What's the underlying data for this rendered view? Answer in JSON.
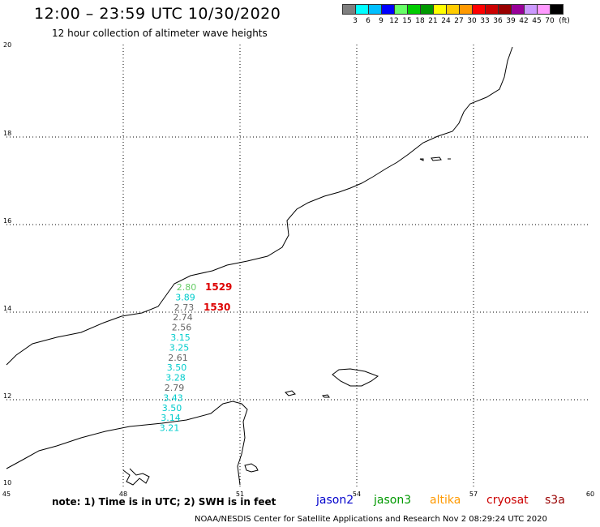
{
  "header": {
    "title": "12:00 – 23:59 UTC 10/30/2020",
    "subtitle": "12 hour collection of altimeter wave heights"
  },
  "scale": {
    "colors": [
      "#7f7f7f",
      "#00ffff",
      "#00bfff",
      "#0000ff",
      "#66ff66",
      "#00cc00",
      "#009900",
      "#ffff00",
      "#ffcc00",
      "#ff9900",
      "#ff0000",
      "#cc0000",
      "#990000",
      "#990099",
      "#cc99ff",
      "#ff99ff",
      "#000000"
    ],
    "labels": [
      "3",
      "6",
      "9",
      "12",
      "15",
      "18",
      "21",
      "24",
      "27",
      "30",
      "33",
      "36",
      "39",
      "42",
      "45",
      "70"
    ],
    "unit": "(ft)"
  },
  "axes": {
    "lon_ticks": [
      "45",
      "48",
      "51",
      "54",
      "57",
      "60"
    ],
    "lat_ticks": [
      "20",
      "18",
      "16",
      "14",
      "12",
      "10"
    ]
  },
  "observations": [
    {
      "value": "2.80",
      "color": "#66cc66"
    },
    {
      "value": "3.89",
      "color": "#00cccc"
    },
    {
      "value": "2.73",
      "color": "#666666"
    },
    {
      "value": "2.74",
      "color": "#666666"
    },
    {
      "value": "2.56",
      "color": "#666666"
    },
    {
      "value": "3.15",
      "color": "#00cccc"
    },
    {
      "value": "3.25",
      "color": "#00cccc"
    },
    {
      "value": "2.61",
      "color": "#666666"
    },
    {
      "value": "3.50",
      "color": "#00cccc"
    },
    {
      "value": "3.28",
      "color": "#00cccc"
    },
    {
      "value": "2.79",
      "color": "#666666"
    },
    {
      "value": "3.43",
      "color": "#00cccc"
    },
    {
      "value": "3.50",
      "color": "#00cccc"
    },
    {
      "value": "3.14",
      "color": "#00cccc"
    },
    {
      "value": "3.21",
      "color": "#00cccc"
    }
  ],
  "time_labels": [
    {
      "text": "1529",
      "color": "#dd0000"
    },
    {
      "text": "1530",
      "color": "#dd0000"
    }
  ],
  "legend": [
    {
      "name": "jason2",
      "color": "#0000cc"
    },
    {
      "name": "jason3",
      "color": "#009900"
    },
    {
      "name": "altika",
      "color": "#ff9900"
    },
    {
      "name": "cryosat",
      "color": "#cc0000"
    },
    {
      "name": "s3a",
      "color": "#990000"
    }
  ],
  "note": "note: 1) Time is in UTC; 2) SWH is in feet",
  "credit": "NOAA/NESDIS Center for Satellite Applications and Research    Nov  2 08:29:24 UTC 2020"
}
